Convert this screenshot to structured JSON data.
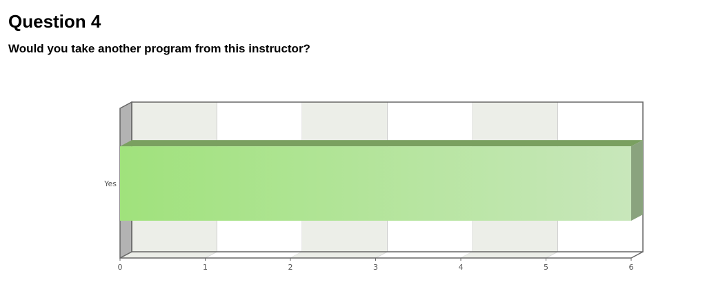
{
  "header": {
    "title": "Question 4",
    "question": "Would you take another program from this instructor?"
  },
  "chart_data": {
    "type": "bar",
    "orientation": "horizontal",
    "style": "3d",
    "categories": [
      "Yes"
    ],
    "values": [
      6
    ],
    "xlim": [
      0,
      6
    ],
    "xticks": [
      "0",
      "1",
      "2",
      "3",
      "4",
      "5",
      "6"
    ],
    "grid": true,
    "legend": "none",
    "colors": {
      "bar_start": "#a0e27c",
      "bar_end": "#c8e7bb",
      "bar_top": "#7aa060",
      "bar_side": "#8aa37e",
      "band": "#eceee8",
      "wall": "#b3b3b3",
      "axis": "#666666"
    }
  }
}
